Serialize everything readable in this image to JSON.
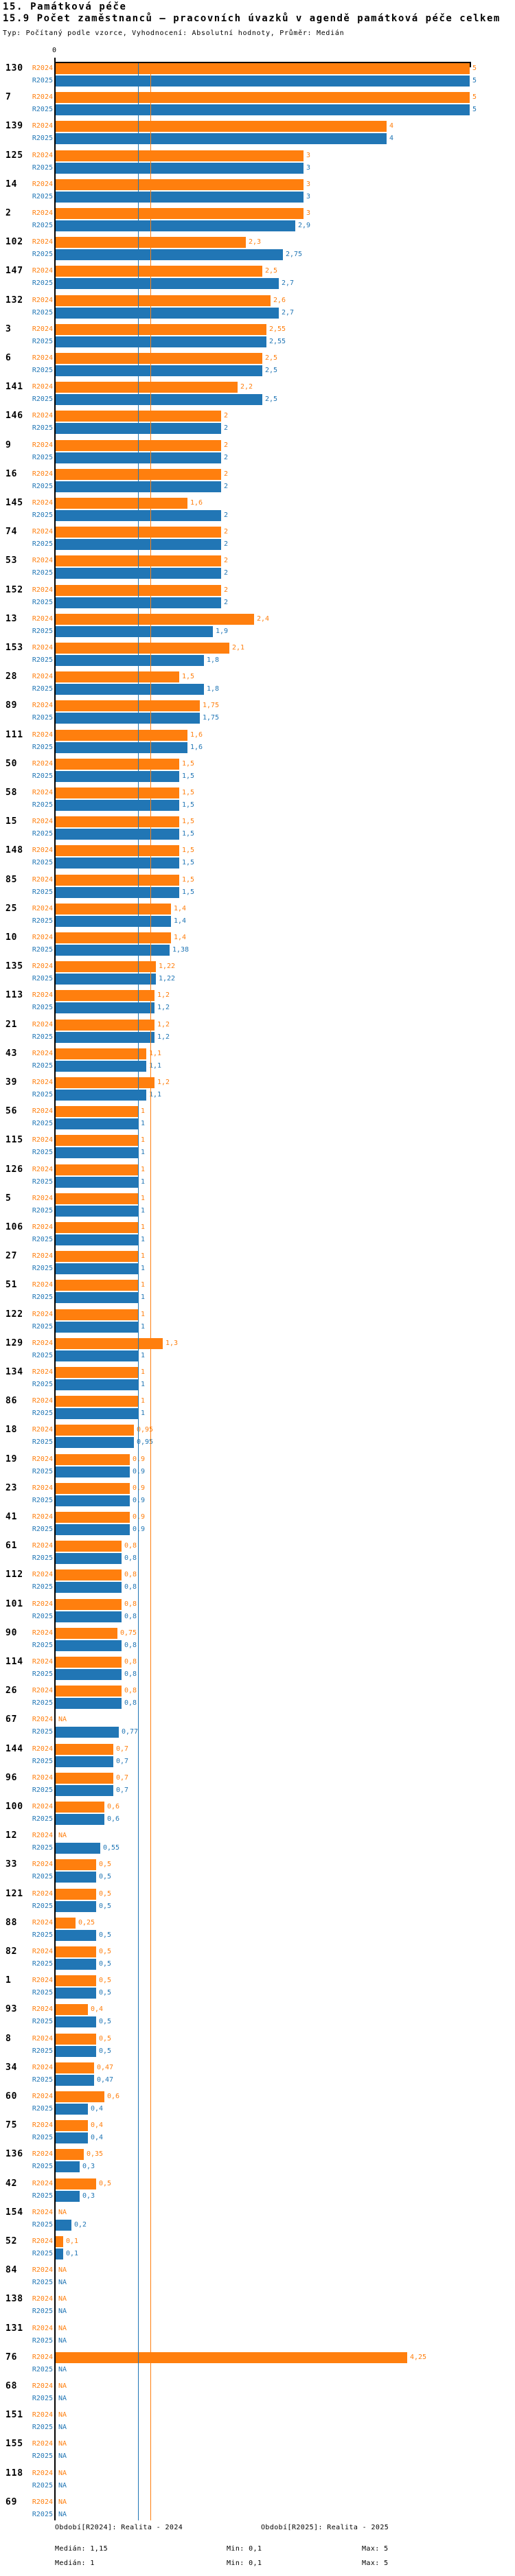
{
  "header": {
    "section_title": "15. Památková péče",
    "chart_title": "15.9 Počet zaměstnanců – pracovních úvazků v agendě památková péče celkem",
    "meta": "Typ: Počítaný podle vzorce, Vyhodnocení: Absolutní hodnoty, Průměr: Medián"
  },
  "colors": {
    "r2024": "#FF7F0E",
    "r2025": "#2176B5",
    "axis": "#000000"
  },
  "chart_data": {
    "type": "bar",
    "orientation": "horizontal",
    "title": "15.9 Počet zaměstnanců – pracovních úvazků v agendě památková péče celkem",
    "xlabel": "",
    "ylabel": "",
    "axis": {
      "min": 0,
      "max": 5,
      "origin_tick_label": "0",
      "grid": false
    },
    "na_text": "NA",
    "series": [
      {
        "key": "R2024",
        "label": "R2024",
        "color": "#FF7F0E",
        "median": 1.15
      },
      {
        "key": "R2025",
        "label": "R2025",
        "color": "#2176B5",
        "median": 1.0
      }
    ],
    "row_fields": [
      "id",
      "R2024",
      "R2025"
    ],
    "rows": [
      [
        "130",
        "5",
        "5"
      ],
      [
        "7",
        "5",
        "5"
      ],
      [
        "139",
        "4",
        "4"
      ],
      [
        "125",
        "3",
        "3"
      ],
      [
        "14",
        "3",
        "3"
      ],
      [
        "2",
        "3",
        "2,9"
      ],
      [
        "102",
        "2,3",
        "2,75"
      ],
      [
        "147",
        "2,5",
        "2,7"
      ],
      [
        "132",
        "2,6",
        "2,7"
      ],
      [
        "3",
        "2,55",
        "2,55"
      ],
      [
        "6",
        "2,5",
        "2,5"
      ],
      [
        "141",
        "2,2",
        "2,5"
      ],
      [
        "146",
        "2",
        "2"
      ],
      [
        "9",
        "2",
        "2"
      ],
      [
        "16",
        "2",
        "2"
      ],
      [
        "145",
        "1,6",
        "2"
      ],
      [
        "74",
        "2",
        "2"
      ],
      [
        "53",
        "2",
        "2"
      ],
      [
        "152",
        "2",
        "2"
      ],
      [
        "13",
        "2,4",
        "1,9"
      ],
      [
        "153",
        "2,1",
        "1,8"
      ],
      [
        "28",
        "1,5",
        "1,8"
      ],
      [
        "89",
        "1,75",
        "1,75"
      ],
      [
        "111",
        "1,6",
        "1,6"
      ],
      [
        "50",
        "1,5",
        "1,5"
      ],
      [
        "58",
        "1,5",
        "1,5"
      ],
      [
        "15",
        "1,5",
        "1,5"
      ],
      [
        "148",
        "1,5",
        "1,5"
      ],
      [
        "85",
        "1,5",
        "1,5"
      ],
      [
        "25",
        "1,4",
        "1,4"
      ],
      [
        "10",
        "1,4",
        "1,38"
      ],
      [
        "135",
        "1,22",
        "1,22"
      ],
      [
        "113",
        "1,2",
        "1,2"
      ],
      [
        "21",
        "1,2",
        "1,2"
      ],
      [
        "43",
        "1,1",
        "1,1"
      ],
      [
        "39",
        "1,2",
        "1,1"
      ],
      [
        "56",
        "1",
        "1"
      ],
      [
        "115",
        "1",
        "1"
      ],
      [
        "126",
        "1",
        "1"
      ],
      [
        "5",
        "1",
        "1"
      ],
      [
        "106",
        "1",
        "1"
      ],
      [
        "27",
        "1",
        "1"
      ],
      [
        "51",
        "1",
        "1"
      ],
      [
        "122",
        "1",
        "1"
      ],
      [
        "129",
        "1,3",
        "1"
      ],
      [
        "134",
        "1",
        "1"
      ],
      [
        "86",
        "1",
        "1"
      ],
      [
        "18",
        "0,95",
        "0,95"
      ],
      [
        "19",
        "0,9",
        "0,9"
      ],
      [
        "23",
        "0,9",
        "0,9"
      ],
      [
        "41",
        "0,9",
        "0,9"
      ],
      [
        "61",
        "0,8",
        "0,8"
      ],
      [
        "112",
        "0,8",
        "0,8"
      ],
      [
        "101",
        "0,8",
        "0,8"
      ],
      [
        "90",
        "0,75",
        "0,8"
      ],
      [
        "114",
        "0,8",
        "0,8"
      ],
      [
        "26",
        "0,8",
        "0,8"
      ],
      [
        "67",
        "NA",
        "0,77"
      ],
      [
        "144",
        "0,7",
        "0,7"
      ],
      [
        "96",
        "0,7",
        "0,7"
      ],
      [
        "100",
        "0,6",
        "0,6"
      ],
      [
        "12",
        "NA",
        "0,55"
      ],
      [
        "33",
        "0,5",
        "0,5"
      ],
      [
        "121",
        "0,5",
        "0,5"
      ],
      [
        "88",
        "0,25",
        "0,5"
      ],
      [
        "82",
        "0,5",
        "0,5"
      ],
      [
        "1",
        "0,5",
        "0,5"
      ],
      [
        "93",
        "0,4",
        "0,5"
      ],
      [
        "8",
        "0,5",
        "0,5"
      ],
      [
        "34",
        "0,47",
        "0,47"
      ],
      [
        "60",
        "0,6",
        "0,4"
      ],
      [
        "75",
        "0,4",
        "0,4"
      ],
      [
        "136",
        "0,35",
        "0,3"
      ],
      [
        "42",
        "0,5",
        "0,3"
      ],
      [
        "154",
        "NA",
        "0,2"
      ],
      [
        "52",
        "0,1",
        "0,1"
      ],
      [
        "84",
        "NA",
        "NA"
      ],
      [
        "138",
        "NA",
        "NA"
      ],
      [
        "131",
        "NA",
        "NA"
      ],
      [
        "76",
        "4,25",
        "NA"
      ],
      [
        "68",
        "NA",
        "NA"
      ],
      [
        "151",
        "NA",
        "NA"
      ],
      [
        "155",
        "NA",
        "NA"
      ],
      [
        "118",
        "NA",
        "NA"
      ],
      [
        "69",
        "NA",
        "NA"
      ]
    ]
  },
  "legend": {
    "r2024": {
      "period": "Období[R2024]: Realita - 2024",
      "median": "Medián: 1,15",
      "min": "Min: 0,1",
      "max": "Max: 5"
    },
    "r2025": {
      "period": "Období[R2025]: Realita - 2025",
      "median": "Medián: 1",
      "min": "Min: 0,1",
      "max": "Max: 5"
    }
  }
}
